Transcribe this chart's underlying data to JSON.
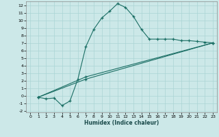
{
  "xlabel": "Humidex (Indice chaleur)",
  "bg_color": "#cce8e8",
  "line_color": "#1a6e64",
  "grid_color": "#aad4d4",
  "xlim": [
    -0.5,
    23.5
  ],
  "ylim": [
    -2.2,
    12.5
  ],
  "xticks": [
    0,
    1,
    2,
    3,
    4,
    5,
    6,
    7,
    8,
    9,
    10,
    11,
    12,
    13,
    14,
    15,
    16,
    17,
    18,
    19,
    20,
    21,
    22,
    23
  ],
  "yticks": [
    -2,
    -1,
    0,
    1,
    2,
    3,
    4,
    5,
    6,
    7,
    8,
    9,
    10,
    11,
    12
  ],
  "line1_x": [
    1,
    2,
    3,
    4,
    5,
    6,
    7,
    8,
    9,
    10,
    11,
    12,
    13,
    14,
    15,
    16,
    17,
    18,
    19,
    20,
    21,
    22,
    23
  ],
  "line1_y": [
    -0.2,
    -0.4,
    -0.3,
    -1.3,
    -0.7,
    2.2,
    6.5,
    8.8,
    10.3,
    11.2,
    12.2,
    11.7,
    10.5,
    8.8,
    7.5,
    7.5,
    7.5,
    7.5,
    7.3,
    7.3,
    7.2,
    7.1,
    7.0
  ],
  "line2_x": [
    1,
    7,
    23
  ],
  "line2_y": [
    -0.2,
    2.2,
    7.0
  ],
  "line3_x": [
    1,
    7,
    23
  ],
  "line3_y": [
    -0.2,
    2.5,
    7.0
  ]
}
